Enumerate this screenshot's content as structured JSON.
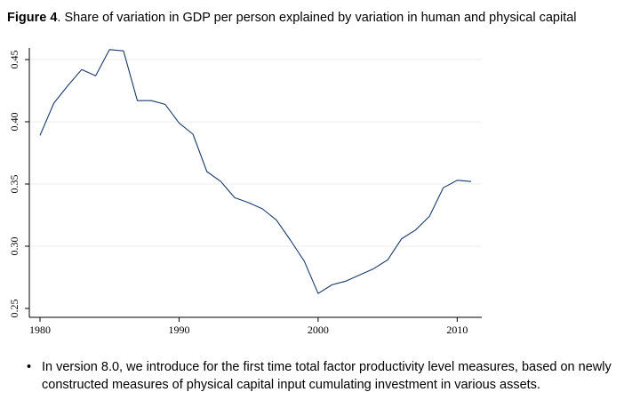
{
  "caption": {
    "label": "Figure 4",
    "text": ". Share of variation in GDP per person explained by variation in human and physical capital"
  },
  "chart_data": {
    "type": "line",
    "title": "",
    "xlabel": "",
    "ylabel": "",
    "xlim": [
      1980,
      2011
    ],
    "ylim": [
      0.25,
      0.458
    ],
    "x_ticks": [
      1980,
      1990,
      2000,
      2010
    ],
    "x_tick_labels": [
      "1980",
      "1990",
      "2000",
      "2010"
    ],
    "y_ticks": [
      0.25,
      0.3,
      0.35,
      0.4,
      0.45
    ],
    "y_tick_labels": [
      "0.25",
      "0.30",
      "0.35",
      "0.40",
      "0.45"
    ],
    "grid": "horizontal",
    "legend": "none",
    "line_color": "#1a3a6b",
    "series": [
      {
        "x": [
          1980,
          1981,
          1982,
          1983,
          1984,
          1985,
          1986,
          1987,
          1988,
          1989,
          1990,
          1991,
          1992,
          1993,
          1994,
          1995,
          1996,
          1997,
          1998,
          1999,
          2000,
          2001,
          2002,
          2003,
          2004,
          2005,
          2006,
          2007,
          2008,
          2009,
          2010,
          2011
        ],
        "values": [
          0.389,
          0.415,
          0.429,
          0.442,
          0.437,
          0.458,
          0.457,
          0.417,
          0.417,
          0.414,
          0.399,
          0.39,
          0.36,
          0.352,
          0.339,
          0.335,
          0.33,
          0.321,
          0.305,
          0.288,
          0.262,
          0.269,
          0.272,
          0.277,
          0.282,
          0.289,
          0.306,
          0.313,
          0.324,
          0.347,
          0.353,
          0.352
        ]
      }
    ]
  },
  "note": {
    "bullet": "•",
    "text": "In version 8.0, we introduce for the first time total factor productivity level measures, based on newly constructed measures of physical capital input cumulating investment in various assets."
  }
}
